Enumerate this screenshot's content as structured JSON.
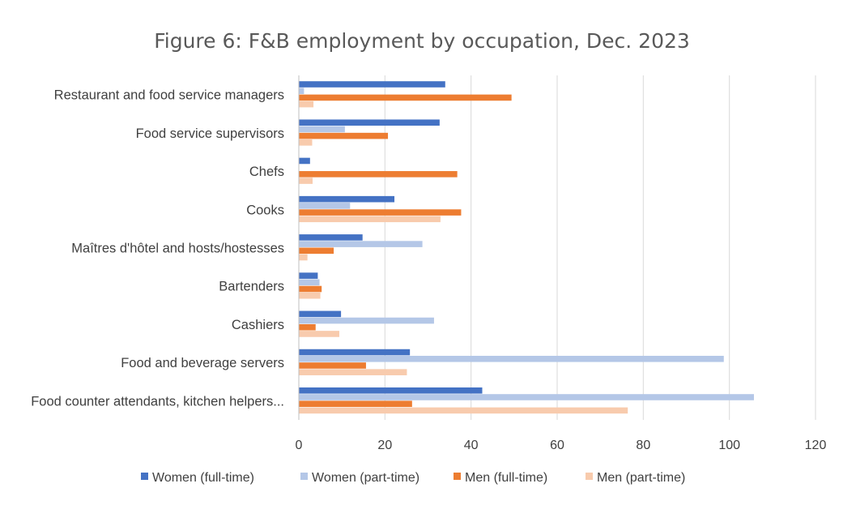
{
  "chart_data": {
    "type": "bar",
    "orientation": "horizontal",
    "title": "Figure 6: F&B employment by occupation, Dec. 2023",
    "xlabel": "",
    "ylabel": "",
    "xlim": [
      0,
      120
    ],
    "xticks": [
      "0",
      "20",
      "40",
      "60",
      "80",
      "100",
      "120"
    ],
    "grid": true,
    "legend_position": "bottom",
    "categories": [
      "Restaurant and food service managers",
      "Food service supervisors",
      "Chefs",
      "Cooks",
      "Maîtres d'hôtel and hosts/hostesses",
      "Bartenders",
      "Cashiers",
      "Food and beverage servers",
      "Food counter attendants, kitchen helpers..."
    ],
    "series": [
      {
        "name": "Women (full-time)",
        "color": "#4472c4",
        "values": [
          34.0,
          32.7,
          2.6,
          22.2,
          14.8,
          4.4,
          9.8,
          25.8,
          42.6
        ]
      },
      {
        "name": "Women (part-time)",
        "color": "#b4c7e7",
        "values": [
          1.2,
          10.7,
          0.0,
          11.9,
          28.7,
          4.8,
          31.4,
          98.7,
          105.7
        ]
      },
      {
        "name": "Men (full-time)",
        "color": "#ed7d31",
        "values": [
          49.4,
          20.7,
          36.8,
          37.7,
          8.1,
          5.3,
          3.9,
          15.6,
          26.3
        ]
      },
      {
        "name": "Men (part-time)",
        "color": "#f8cbad",
        "values": [
          3.4,
          3.1,
          3.2,
          32.9,
          2.0,
          5.0,
          9.4,
          25.1,
          76.4
        ]
      }
    ]
  }
}
